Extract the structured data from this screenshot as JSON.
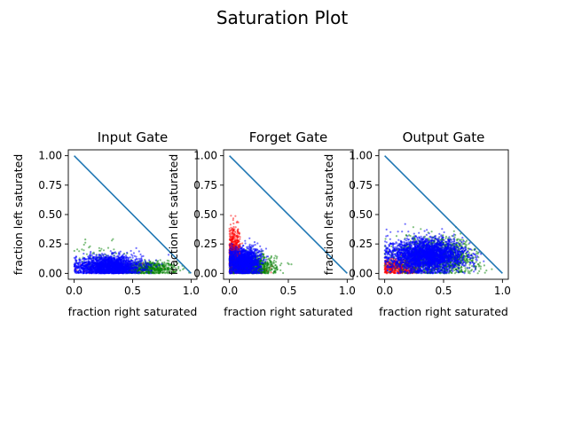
{
  "figure": {
    "suptitle": "Saturation Plot"
  },
  "colors": {
    "red": "#ff0000",
    "green": "#008000",
    "blue": "#0000ff",
    "diagonal": "#1f77b4"
  },
  "chart_data": [
    {
      "type": "scatter",
      "title": "Input Gate",
      "xlabel": "fraction right saturated",
      "ylabel": "fraction left saturated",
      "xlim": [
        -0.05,
        1.05
      ],
      "ylim": [
        -0.05,
        1.05
      ],
      "xticks": [
        "0.0",
        "0.5",
        "1.0"
      ],
      "yticks": [
        "0.00",
        "0.25",
        "0.50",
        "0.75",
        "1.00"
      ],
      "grid": false,
      "line": {
        "x": [
          0,
          1
        ],
        "y": [
          1,
          0
        ]
      },
      "series": [
        {
          "color": "red",
          "clusters": [
            {
              "cx": 0.35,
              "cy": 0.04,
              "sx": 0.18,
              "sy": 0.03,
              "n": 120
            }
          ]
        },
        {
          "color": "green",
          "clusters": [
            {
              "cx": 0.62,
              "cy": 0.04,
              "sx": 0.13,
              "sy": 0.03,
              "n": 650
            },
            {
              "cx": 0.22,
              "cy": 0.12,
              "sx": 0.12,
              "sy": 0.07,
              "n": 90
            }
          ]
        },
        {
          "color": "blue",
          "clusters": [
            {
              "cx": 0.3,
              "cy": 0.06,
              "sx": 0.14,
              "sy": 0.045,
              "n": 2000
            }
          ]
        }
      ]
    },
    {
      "type": "scatter",
      "title": "Forget Gate",
      "xlabel": "fraction right saturated",
      "ylabel": "fraction left saturated",
      "xlim": [
        -0.05,
        1.05
      ],
      "ylim": [
        -0.05,
        1.05
      ],
      "xticks": [
        "0.0",
        "0.5",
        "1.0"
      ],
      "yticks": [
        "0.00",
        "0.25",
        "0.50",
        "0.75",
        "1.00"
      ],
      "grid": false,
      "line": {
        "x": [
          0,
          1
        ],
        "y": [
          1,
          0
        ]
      },
      "series": [
        {
          "color": "red",
          "clusters": [
            {
              "cx": 0.04,
              "cy": 0.16,
              "sx": 0.03,
              "sy": 0.11,
              "n": 650
            },
            {
              "cx": 0.15,
              "cy": 0.03,
              "sx": 0.1,
              "sy": 0.02,
              "n": 120
            }
          ]
        },
        {
          "color": "green",
          "clusters": [
            {
              "cx": 0.2,
              "cy": 0.06,
              "sx": 0.1,
              "sy": 0.05,
              "n": 750
            }
          ]
        },
        {
          "color": "blue",
          "clusters": [
            {
              "cx": 0.12,
              "cy": 0.1,
              "sx": 0.07,
              "sy": 0.06,
              "n": 1500
            }
          ]
        }
      ]
    },
    {
      "type": "scatter",
      "title": "Output Gate",
      "xlabel": "fraction right saturated",
      "ylabel": "fraction left saturated",
      "xlim": [
        -0.05,
        1.05
      ],
      "ylim": [
        -0.05,
        1.05
      ],
      "xticks": [
        "0.0",
        "0.5",
        "1.0"
      ],
      "yticks": [
        "0.00",
        "0.25",
        "0.50",
        "0.75",
        "1.00"
      ],
      "grid": false,
      "line": {
        "x": [
          0,
          1
        ],
        "y": [
          1,
          0
        ]
      },
      "series": [
        {
          "color": "red",
          "clusters": [
            {
              "cx": 0.14,
              "cy": 0.05,
              "sx": 0.09,
              "sy": 0.04,
              "n": 500
            }
          ]
        },
        {
          "color": "green",
          "clusters": [
            {
              "cx": 0.45,
              "cy": 0.14,
              "sx": 0.17,
              "sy": 0.08,
              "n": 1400
            }
          ]
        },
        {
          "color": "blue",
          "clusters": [
            {
              "cx": 0.36,
              "cy": 0.15,
              "sx": 0.16,
              "sy": 0.07,
              "n": 2800
            }
          ]
        }
      ]
    }
  ]
}
